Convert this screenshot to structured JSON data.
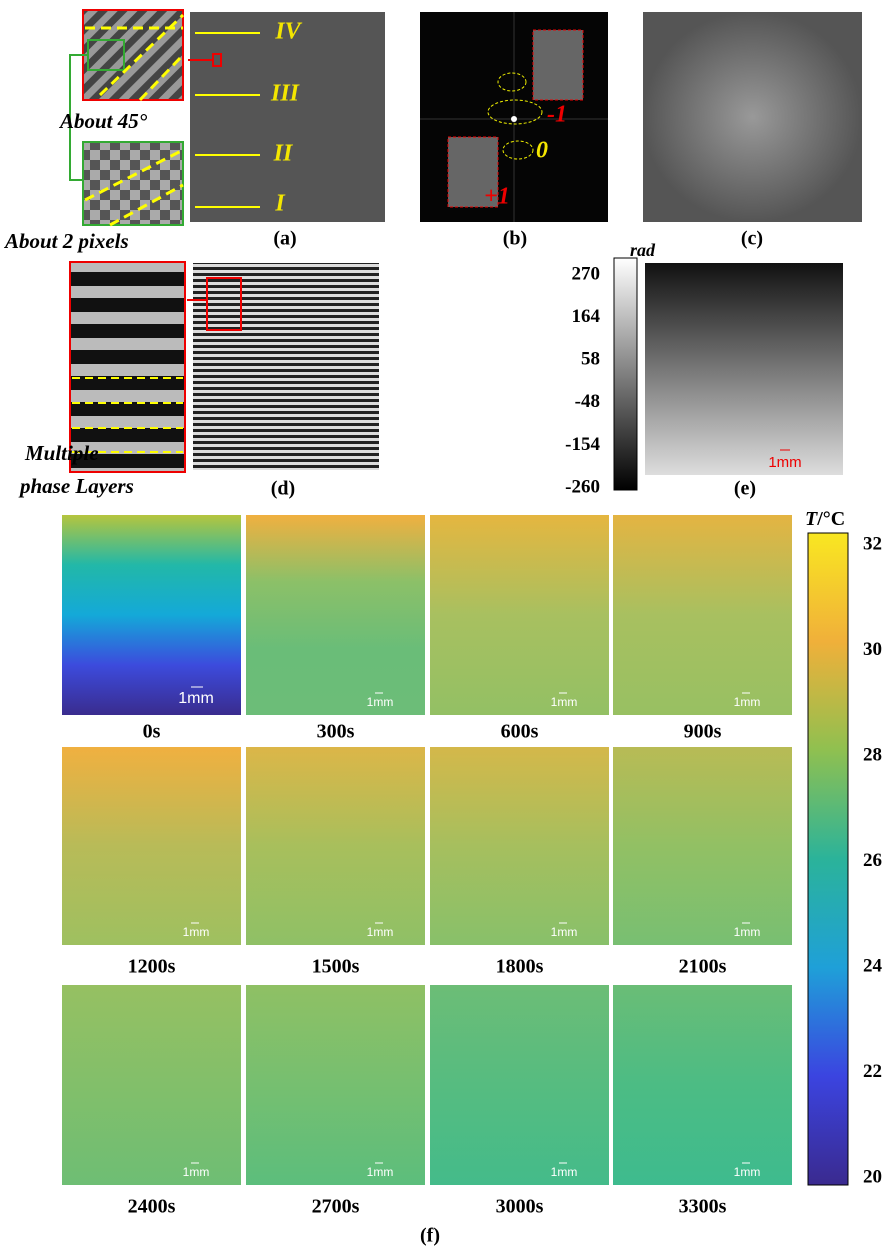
{
  "panel_a": {
    "labels": [
      "IV",
      "III",
      "II",
      "I"
    ],
    "angle_note": "About 45°",
    "pixel_note": "About 2 pixels",
    "caption": "(a)"
  },
  "panel_b": {
    "orders": [
      "-1",
      "0",
      "+1"
    ],
    "caption": "(b)"
  },
  "panel_c": {
    "caption": "(c)"
  },
  "panel_d": {
    "note": [
      "Multiple",
      "phase Layers"
    ],
    "caption": "(d)"
  },
  "panel_e": {
    "unit": "rad",
    "ticks": [
      "270",
      "164",
      "58",
      "-48",
      "-154",
      "-260"
    ],
    "scale": "1mm",
    "caption": "(e)"
  },
  "panel_f": {
    "unit_symbol": "T",
    "unit": "/°C",
    "ticks": [
      "32",
      "30",
      "28",
      "26",
      "24",
      "22",
      "20"
    ],
    "colorbar": [
      "#f9e721",
      "#f0b03a",
      "#8fc050",
      "#2bb39a",
      "#1fa0d8",
      "#3b44e0",
      "#3a2a8f"
    ],
    "scale": "1mm",
    "caption": "(f)",
    "frames": [
      {
        "label": "0s",
        "colors": [
          "#b5c53e",
          "#22b8a8",
          "#14a9d8",
          "#3c4bdd",
          "#3a2c8e"
        ]
      },
      {
        "label": "300s",
        "colors": [
          "#f0b040",
          "#8cc068",
          "#6abd78",
          "#6cbd78"
        ]
      },
      {
        "label": "600s",
        "colors": [
          "#e5b640",
          "#a8c060",
          "#93c064"
        ]
      },
      {
        "label": "900s",
        "colors": [
          "#e4b442",
          "#a8c060",
          "#98c062"
        ]
      },
      {
        "label": "1200s",
        "colors": [
          "#f0b040",
          "#b8bb58",
          "#9ec060"
        ]
      },
      {
        "label": "1500s",
        "colors": [
          "#dcb648",
          "#a8bf5c",
          "#8fc066"
        ]
      },
      {
        "label": "1800s",
        "colors": [
          "#d4b84a",
          "#a6bf5e",
          "#88c06a"
        ]
      },
      {
        "label": "2100s",
        "colors": [
          "#b8bb55",
          "#92c064",
          "#78bf72"
        ]
      },
      {
        "label": "2400s",
        "colors": [
          "#96c062",
          "#82bf6a",
          "#6ebe74"
        ]
      },
      {
        "label": "2700s",
        "colors": [
          "#8fc064",
          "#76bf70",
          "#5cbe7c"
        ]
      },
      {
        "label": "3000s",
        "colors": [
          "#6cbd76",
          "#56bc80",
          "#44bb8a"
        ]
      },
      {
        "label": "3300s",
        "colors": [
          "#6abd76",
          "#4cbc84",
          "#3ebb8e"
        ]
      }
    ]
  }
}
